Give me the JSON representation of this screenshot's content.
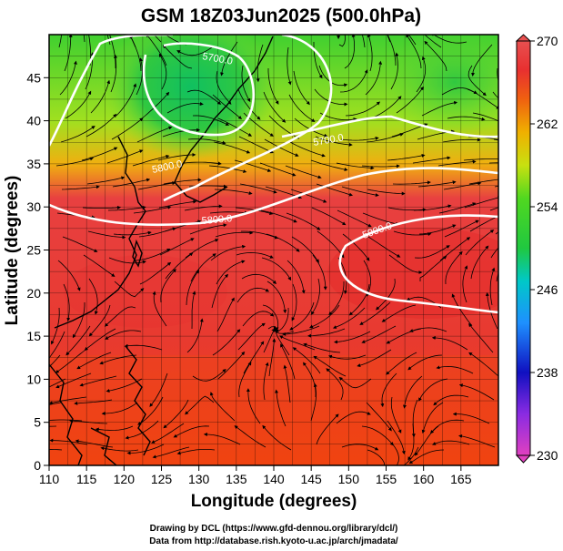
{
  "chart_data": {
    "type": "heatmap",
    "title": "GSM 18Z03Jun2025 (500.0hPa)",
    "xlabel": "Longitude (degrees)",
    "ylabel": "Latitude  (degrees)",
    "xlim": [
      110,
      170
    ],
    "ylim": [
      0,
      50
    ],
    "x_ticks": [
      110,
      115,
      120,
      125,
      130,
      135,
      140,
      145,
      150,
      155,
      160,
      165
    ],
    "y_ticks": [
      0,
      5,
      10,
      15,
      20,
      25,
      30,
      35,
      40,
      45
    ],
    "colorbar": {
      "min": 230,
      "max": 270,
      "ticks": [
        230,
        238,
        246,
        254,
        262,
        270
      ],
      "colors": [
        "#e040c0",
        "#8a2be2",
        "#1010c0",
        "#1e90ff",
        "#00c8c8",
        "#20c840",
        "#50d820",
        "#c8e010",
        "#f0b000",
        "#f06010",
        "#e83030",
        "#e85050"
      ]
    },
    "contours": [
      {
        "label": "5700.0",
        "lon": 126.5,
        "lat": 46
      },
      {
        "label": "5800.0",
        "lon": 126,
        "lat": 36.5
      },
      {
        "label": "5700.0",
        "lon": 147,
        "lat": 39.5
      },
      {
        "label": "5800.0",
        "lon": 132,
        "lat": 31
      },
      {
        "label": "5900.0",
        "lon": 154,
        "lat": 29.5
      }
    ],
    "credits": [
      "Drawing by DCL (https://www.gfd-dennou.org/library/dcl/)",
      "Data from http://database.rish.kyoto-u.ac.jp/arch/jmadata/"
    ]
  }
}
